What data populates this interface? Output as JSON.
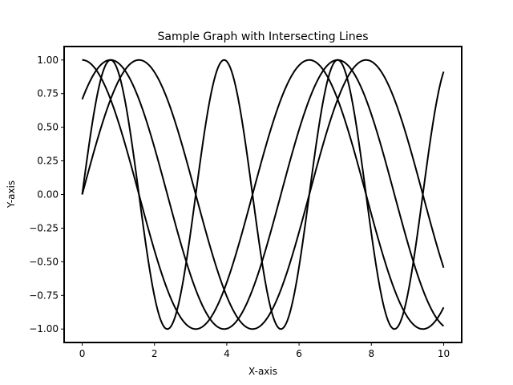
{
  "chart_data": {
    "type": "line",
    "title": "Sample Graph with Intersecting Lines",
    "xlabel": "X-axis",
    "ylabel": "Y-axis",
    "xlim": [
      -0.5,
      10.5
    ],
    "ylim": [
      -1.1,
      1.1
    ],
    "xticks": [
      0,
      2,
      4,
      6,
      8,
      10
    ],
    "xtick_labels": [
      "0",
      "2",
      "4",
      "6",
      "8",
      "10"
    ],
    "yticks": [
      -1.0,
      -0.75,
      -0.5,
      -0.25,
      0.0,
      0.25,
      0.5,
      0.75,
      1.0
    ],
    "ytick_labels": [
      "−1.00",
      "−0.75",
      "−0.50",
      "−0.25",
      "0.00",
      "0.25",
      "0.50",
      "0.75",
      "1.00"
    ],
    "grid": false,
    "legend": false,
    "line_color": "#000000",
    "series": [
      {
        "function": "sin(x)",
        "x_range": [
          0,
          10
        ]
      },
      {
        "function": "cos(x)",
        "x_range": [
          0,
          10
        ]
      },
      {
        "function": "sin(2x)",
        "x_range": [
          0,
          10
        ]
      },
      {
        "function": "sin(x + pi/4)",
        "x_range": [
          0,
          10
        ]
      }
    ]
  }
}
